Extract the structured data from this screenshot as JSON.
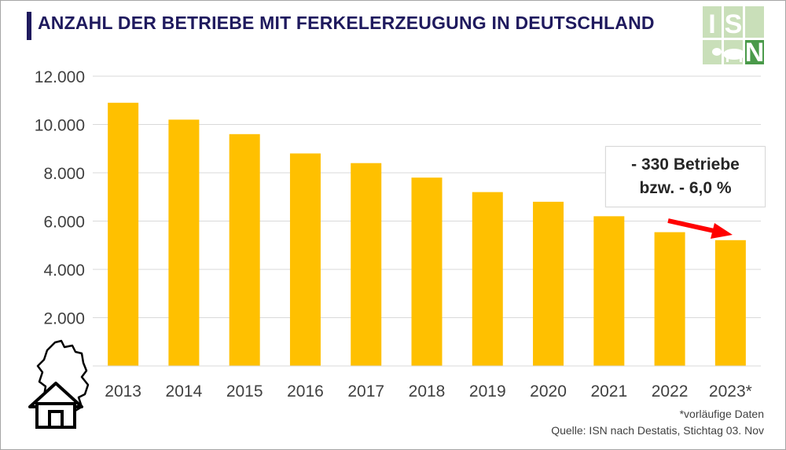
{
  "header": {
    "title": "ANZAHL DER BETRIEBE MIT FERKELERZEUGUNG IN DEUTSCHLAND"
  },
  "logo": {
    "text": "ISN",
    "colors": [
      "#bcd9a8",
      "#3f8f3f"
    ]
  },
  "annotation": {
    "line1": "- 330 Betriebe",
    "line2": "bzw. - 6,0 %",
    "arrow_color": "#ff0000"
  },
  "footer": {
    "footnote": "*vorläufige Daten",
    "source": "Quelle: ISN nach Destatis, Stichtag 03. Nov"
  },
  "colors": {
    "bar": "#ffc000",
    "grid": "#d9d9d9",
    "title": "#1f1a5e"
  },
  "icons": [
    "germany-map-icon",
    "house-icon",
    "pig-icon"
  ],
  "chart_data": {
    "type": "bar",
    "title": "ANZAHL DER BETRIEBE MIT FERKELERZEUGUNG IN DEUTSCHLAND",
    "categories": [
      "2013",
      "2014",
      "2015",
      "2016",
      "2017",
      "2018",
      "2019",
      "2020",
      "2021",
      "2022",
      "2023*"
    ],
    "values": [
      10900,
      10200,
      9600,
      8800,
      8400,
      7800,
      7200,
      6800,
      6200,
      5540,
      5210
    ],
    "ylim": [
      0,
      12000
    ],
    "yticks": [
      2000,
      4000,
      6000,
      8000,
      10000,
      12000
    ],
    "ytick_labels": [
      "2.000",
      "4.000",
      "6.000",
      "8.000",
      "10.000",
      "12.000"
    ],
    "xlabel": "",
    "ylabel": "",
    "grid": true,
    "legend": "none"
  }
}
